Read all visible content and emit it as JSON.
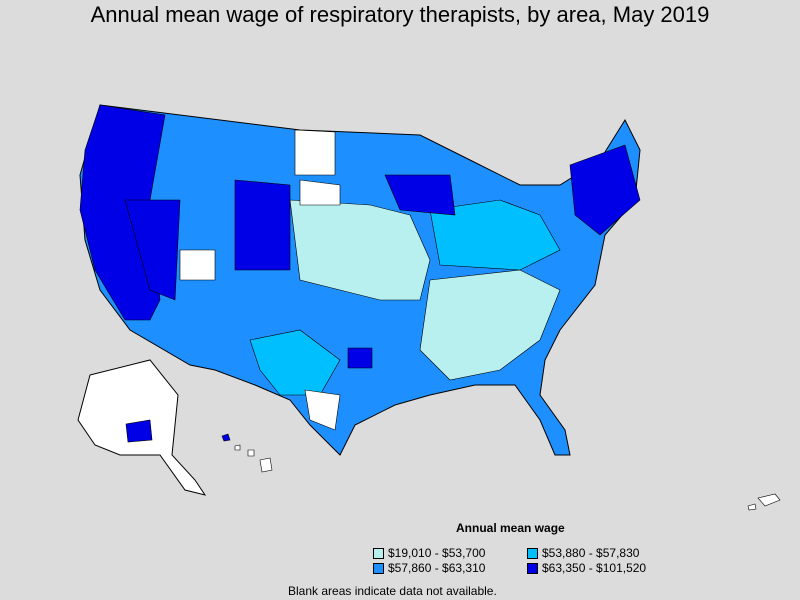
{
  "title": "Annual mean wage of respiratory therapists, by area, May 2019",
  "legend": {
    "title": "Annual mean wage",
    "items": [
      {
        "label": "$19,010 - $53,700",
        "color": "#b8f0f0"
      },
      {
        "label": "$53,880 - $57,830",
        "color": "#00bfff"
      },
      {
        "label": "$57,860 - $63,310",
        "color": "#1e8fff"
      },
      {
        "label": "$63,350 - $101,520",
        "color": "#0000e6"
      }
    ]
  },
  "footnote": "Blank areas indicate data not available.",
  "colors": {
    "background": "#dcdcdc",
    "blank": "#ffffff",
    "border": "#000000"
  }
}
